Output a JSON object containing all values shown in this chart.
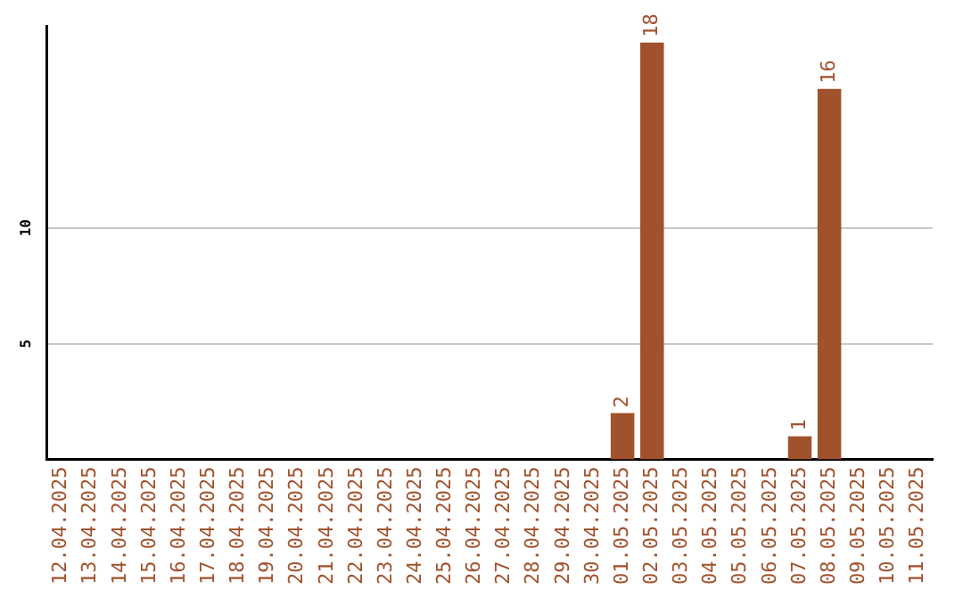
{
  "chart_data": {
    "type": "bar",
    "categories": [
      "12.04.2025",
      "13.04.2025",
      "14.04.2025",
      "15.04.2025",
      "16.04.2025",
      "17.04.2025",
      "18.04.2025",
      "19.04.2025",
      "20.04.2025",
      "21.04.2025",
      "22.04.2025",
      "23.04.2025",
      "24.04.2025",
      "25.04.2025",
      "26.04.2025",
      "27.04.2025",
      "28.04.2025",
      "29.04.2025",
      "30.04.2025",
      "01.05.2025",
      "02.05.2025",
      "03.05.2025",
      "04.05.2025",
      "05.05.2025",
      "06.05.2025",
      "07.05.2025",
      "08.05.2025",
      "09.05.2025",
      "10.05.2025",
      "11.05.2025"
    ],
    "values": [
      0,
      0,
      0,
      0,
      0,
      0,
      0,
      0,
      0,
      0,
      0,
      0,
      0,
      0,
      0,
      0,
      0,
      0,
      0,
      2,
      18,
      0,
      0,
      0,
      0,
      1,
      16,
      0,
      0,
      0
    ],
    "value_labels": [
      null,
      null,
      null,
      null,
      null,
      null,
      null,
      null,
      null,
      null,
      null,
      null,
      null,
      null,
      null,
      null,
      null,
      null,
      null,
      "2",
      "18",
      null,
      null,
      null,
      null,
      "1",
      "16",
      null,
      null,
      null
    ],
    "color": "#a0522d",
    "ylim": [
      0,
      18.7
    ],
    "yticks": [
      5,
      10
    ],
    "grid": "y",
    "legend": false
  }
}
